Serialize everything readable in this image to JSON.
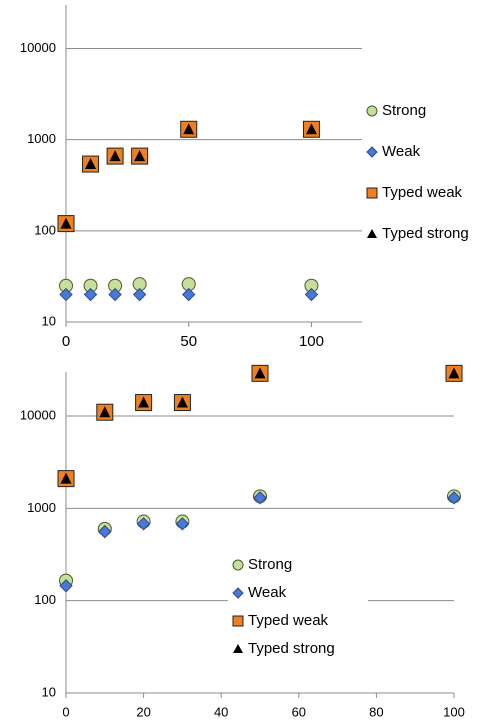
{
  "chart_data": [
    {
      "type": "scatter",
      "x": [
        0,
        10,
        20,
        30,
        50,
        100
      ],
      "xlim": [
        0,
        110
      ],
      "xticks": [
        0,
        50,
        100
      ],
      "ylim": [
        10,
        30000
      ],
      "yticks": [
        10,
        100,
        1000,
        10000
      ],
      "log_y": true,
      "grid": true,
      "legend": "right",
      "series": [
        {
          "name": "Strong",
          "color": "#c6e09a",
          "marker": "circle",
          "values": [
            25,
            25,
            25,
            26,
            26,
            25
          ]
        },
        {
          "name": "Weak",
          "color": "#4a78d6",
          "marker": "diamond",
          "values": [
            20,
            20,
            20,
            20,
            20,
            20
          ]
        },
        {
          "name": "Typed weak",
          "color": "#f07f1f",
          "marker": "square",
          "values": [
            120,
            540,
            660,
            660,
            1300,
            1300
          ]
        },
        {
          "name": "Typed strong",
          "color": "#000000",
          "marker": "triangle",
          "values": [
            120,
            540,
            660,
            660,
            1300,
            1300
          ]
        }
      ]
    },
    {
      "type": "scatter",
      "x": [
        0,
        10,
        20,
        30,
        50,
        100
      ],
      "xlim": [
        0,
        100
      ],
      "xticks": [
        0,
        20,
        40,
        60,
        80,
        100
      ],
      "ylim": [
        10,
        30000
      ],
      "yticks": [
        10,
        100,
        1000,
        10000
      ],
      "log_y": true,
      "grid": true,
      "legend": "center",
      "series": [
        {
          "name": "Strong",
          "color": "#c6e09a",
          "marker": "circle",
          "values": [
            165,
            600,
            720,
            720,
            1350,
            1350
          ]
        },
        {
          "name": "Weak",
          "color": "#4a78d6",
          "marker": "diamond",
          "values": [
            145,
            560,
            680,
            680,
            1300,
            1300
          ]
        },
        {
          "name": "Typed weak",
          "color": "#f07f1f",
          "marker": "square",
          "values": [
            2100,
            11000,
            14000,
            14000,
            29000,
            29000
          ]
        },
        {
          "name": "Typed strong",
          "color": "#000000",
          "marker": "triangle",
          "values": [
            2100,
            11000,
            14000,
            14000,
            29000,
            29000
          ]
        }
      ]
    }
  ]
}
